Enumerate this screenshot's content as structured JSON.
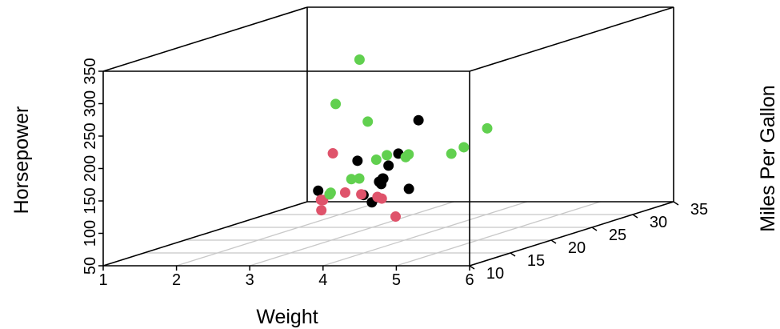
{
  "chart_data": {
    "type": "scatter3d",
    "title": "",
    "axes": {
      "x": {
        "label": "Weight",
        "range": [
          1,
          6
        ],
        "ticks": [
          "1",
          "2",
          "3",
          "4",
          "5",
          "6"
        ]
      },
      "y": {
        "label": "Miles Per Gallon",
        "range": [
          5,
          35
        ],
        "ticks": [
          "10",
          "15",
          "20",
          "25",
          "30",
          "35"
        ]
      },
      "z": {
        "label": "Horsepower",
        "range": [
          50,
          350
        ],
        "ticks": [
          "50",
          "100",
          "150",
          "200",
          "250",
          "300",
          "350"
        ]
      }
    },
    "grid": true,
    "series": [
      {
        "color": "#000000",
        "points": [
          [
            3.46,
            18.0,
            105
          ],
          [
            3.57,
            18.5,
            140
          ],
          [
            3.84,
            15.5,
            150
          ],
          [
            3.17,
            19.9,
            110
          ],
          [
            3.52,
            22.8,
            110
          ],
          [
            3.44,
            19.6,
            128
          ],
          [
            4.1,
            15.0,
            190
          ],
          [
            3.78,
            17.0,
            165
          ],
          [
            3.93,
            14.0,
            150
          ],
          [
            4.05,
            18.5,
            230
          ],
          [
            3.21,
            12.8,
            140
          ],
          [
            3.57,
            14.7,
            180
          ]
        ]
      },
      {
        "color": "#df536b",
        "points": [
          [
            2.32,
            22.8,
            93
          ],
          [
            3.19,
            24.4,
            62
          ],
          [
            3.15,
            22.8,
            95
          ],
          [
            2.78,
            21.4,
            109
          ],
          [
            2.2,
            32.4,
            66
          ],
          [
            1.62,
            30.4,
            52
          ],
          [
            1.84,
            33.9,
            65
          ],
          [
            2.14,
            26.0,
            91
          ],
          [
            2.47,
            21.5,
            97
          ],
          [
            2.77,
            19.7,
            175
          ]
        ]
      },
      {
        "color": "#61d04f",
        "points": [
          [
            3.73,
            17.3,
            180
          ],
          [
            3.78,
            15.2,
            180
          ],
          [
            5.25,
            10.4,
            205
          ],
          [
            5.42,
            10.4,
            215
          ],
          [
            5.34,
            14.7,
            230
          ],
          [
            3.52,
            15.5,
            150
          ],
          [
            3.44,
            15.2,
            150
          ],
          [
            3.84,
            13.3,
            245
          ],
          [
            3.85,
            19.2,
            175
          ],
          [
            3.17,
            15.8,
            264
          ],
          [
            3.57,
            15.0,
            335
          ],
          [
            4.07,
            16.4,
            180
          ],
          [
            2.14,
            26.0,
            91
          ],
          [
            2.62,
            21.0,
            110
          ]
        ]
      }
    ]
  }
}
